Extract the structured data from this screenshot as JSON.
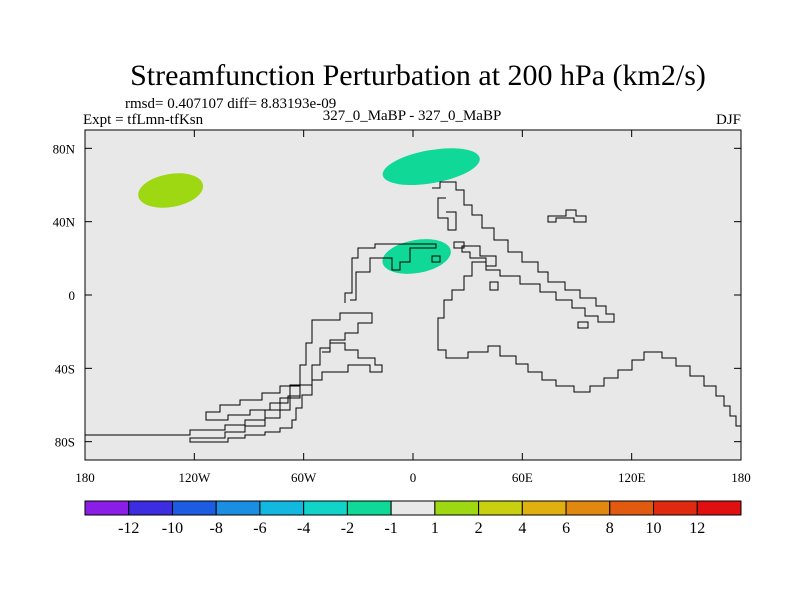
{
  "chart_data": {
    "type": "heatmap",
    "title": "Streamfunction Perturbation at 200 hPa (km2/s)",
    "stats_text": "rmsd= 0.407107 diff= 8.83193e-09",
    "left_label": "Expt = tfLmn-tfKsn",
    "center_label": "327_0_MaBP - 327_0_MaBP",
    "right_label": "DJF",
    "x_axis": {
      "range": [
        -180,
        180
      ],
      "ticks": [
        -180,
        -120,
        -60,
        0,
        60,
        120,
        180
      ],
      "tick_labels": [
        "180",
        "120W",
        "60W",
        "0",
        "60E",
        "120E",
        "180"
      ]
    },
    "y_axis": {
      "range": [
        -90,
        90
      ],
      "ticks": [
        80,
        40,
        0,
        -40,
        -80
      ],
      "tick_labels": [
        "80N",
        "40N",
        "0",
        "40S",
        "80S"
      ]
    },
    "background_color": "#e8e8e8",
    "colorbar": {
      "labels": [
        "-12",
        "-10",
        "-8",
        "-6",
        "-4",
        "-2",
        "-1",
        "1",
        "2",
        "4",
        "6",
        "8",
        "10",
        "12"
      ],
      "colors": [
        "#8a1ee6",
        "#3c2ee0",
        "#1c5ce0",
        "#1a8ee0",
        "#12b8e0",
        "#10d4c8",
        "#10d896",
        "#e8e8e8",
        "#9ed813",
        "#c8d010",
        "#e0b010",
        "#e08810",
        "#e05a10",
        "#e02a10",
        "#e01010"
      ]
    },
    "anomalies": [
      {
        "name": "north-pacific",
        "center_lon": -133,
        "center_lat": 57,
        "lon_halfwidth": 18,
        "lat_halfwidth": 9,
        "color": "#9ed813"
      },
      {
        "name": "arctic-europe",
        "center_lon": 10,
        "center_lat": 70,
        "lon_halfwidth": 27,
        "lat_halfwidth": 9,
        "color": "#10d896"
      },
      {
        "name": "mediterranean",
        "center_lon": 2,
        "center_lat": 21,
        "lon_halfwidth": 19,
        "lat_halfwidth": 9,
        "color": "#10d896"
      }
    ]
  }
}
